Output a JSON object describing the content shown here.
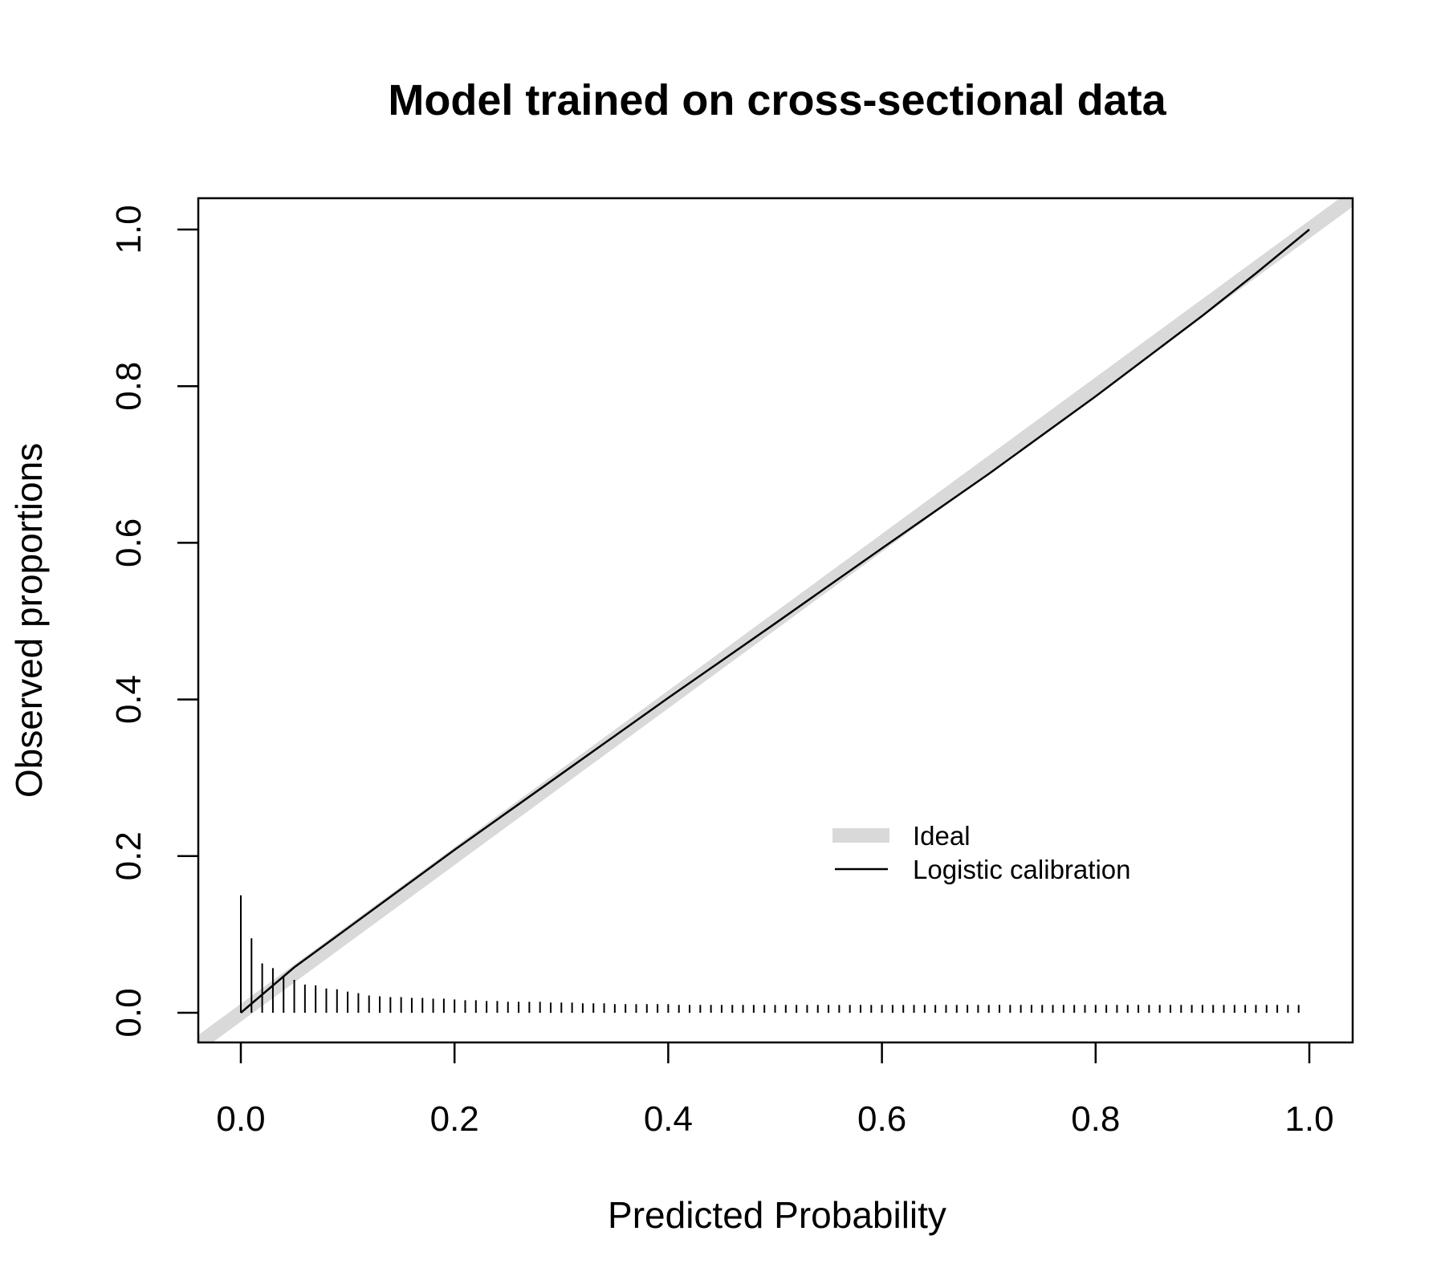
{
  "chart_data": {
    "type": "line",
    "title": "Model trained on cross-sectional data",
    "xlabel": "Predicted Probability",
    "ylabel": "Observed proportions",
    "xlim": [
      0,
      1
    ],
    "ylim": [
      0,
      1
    ],
    "x_ticks": [
      "0.0",
      "0.2",
      "0.4",
      "0.6",
      "0.8",
      "1.0"
    ],
    "y_ticks": [
      "0.0",
      "0.2",
      "0.4",
      "0.6",
      "0.8",
      "1.0"
    ],
    "grid": false,
    "legend": {
      "position": "lower-right",
      "entries": [
        {
          "label": "Ideal",
          "color": "#d9d9d9",
          "style": "thick"
        },
        {
          "label": "Logistic calibration",
          "color": "#000000",
          "style": "thin"
        }
      ]
    },
    "series": [
      {
        "name": "Ideal",
        "color": "#d9d9d9",
        "x": [
          -0.05,
          1.05
        ],
        "y": [
          -0.05,
          1.05
        ]
      },
      {
        "name": "Logistic calibration",
        "color": "#000000",
        "x": [
          0.0,
          0.05,
          0.1,
          0.2,
          0.3,
          0.4,
          0.5,
          0.6,
          0.7,
          0.8,
          0.9,
          0.95,
          1.0
        ],
        "y": [
          0.0,
          0.058,
          0.108,
          0.208,
          0.305,
          0.402,
          0.497,
          0.593,
          0.688,
          0.787,
          0.89,
          0.944,
          1.0
        ]
      }
    ],
    "spikes": {
      "color": "#000000",
      "x": [
        0.0,
        0.01,
        0.02,
        0.03,
        0.04,
        0.05,
        0.06,
        0.07,
        0.08,
        0.09,
        0.1,
        0.11,
        0.12,
        0.13,
        0.14,
        0.15,
        0.16,
        0.17,
        0.18,
        0.19,
        0.2,
        0.21,
        0.22,
        0.23,
        0.24,
        0.25,
        0.26,
        0.27,
        0.28,
        0.29,
        0.3,
        0.31,
        0.32,
        0.33,
        0.34,
        0.35,
        0.36,
        0.37,
        0.38,
        0.39,
        0.4,
        0.41,
        0.42,
        0.43,
        0.44,
        0.45,
        0.46,
        0.47,
        0.48,
        0.49,
        0.5,
        0.51,
        0.52,
        0.53,
        0.54,
        0.55,
        0.56,
        0.57,
        0.58,
        0.59,
        0.6,
        0.61,
        0.62,
        0.63,
        0.64,
        0.65,
        0.66,
        0.67,
        0.68,
        0.69,
        0.7,
        0.71,
        0.72,
        0.73,
        0.74,
        0.75,
        0.76,
        0.77,
        0.78,
        0.79,
        0.8,
        0.81,
        0.82,
        0.83,
        0.84,
        0.85,
        0.86,
        0.87,
        0.88,
        0.89,
        0.9,
        0.91,
        0.92,
        0.93,
        0.94,
        0.95,
        0.96,
        0.97,
        0.98,
        0.99
      ],
      "heights": [
        0.15,
        0.095,
        0.063,
        0.057,
        0.047,
        0.042,
        0.036,
        0.035,
        0.031,
        0.03,
        0.027,
        0.025,
        0.022,
        0.021,
        0.02,
        0.02,
        0.019,
        0.019,
        0.018,
        0.018,
        0.017,
        0.016,
        0.016,
        0.015,
        0.015,
        0.014,
        0.014,
        0.014,
        0.014,
        0.013,
        0.013,
        0.013,
        0.012,
        0.012,
        0.012,
        0.011,
        0.011,
        0.011,
        0.011,
        0.011,
        0.011,
        0.01,
        0.01,
        0.01,
        0.01,
        0.01,
        0.01,
        0.01,
        0.01,
        0.01,
        0.01,
        0.01,
        0.01,
        0.01,
        0.01,
        0.01,
        0.01,
        0.01,
        0.01,
        0.01,
        0.01,
        0.01,
        0.01,
        0.01,
        0.01,
        0.01,
        0.01,
        0.01,
        0.01,
        0.01,
        0.01,
        0.01,
        0.01,
        0.01,
        0.01,
        0.01,
        0.01,
        0.01,
        0.01,
        0.01,
        0.01,
        0.01,
        0.01,
        0.01,
        0.01,
        0.01,
        0.01,
        0.01,
        0.01,
        0.01,
        0.01,
        0.01,
        0.01,
        0.01,
        0.01,
        0.01,
        0.01,
        0.01,
        0.01,
        0.01
      ]
    }
  }
}
